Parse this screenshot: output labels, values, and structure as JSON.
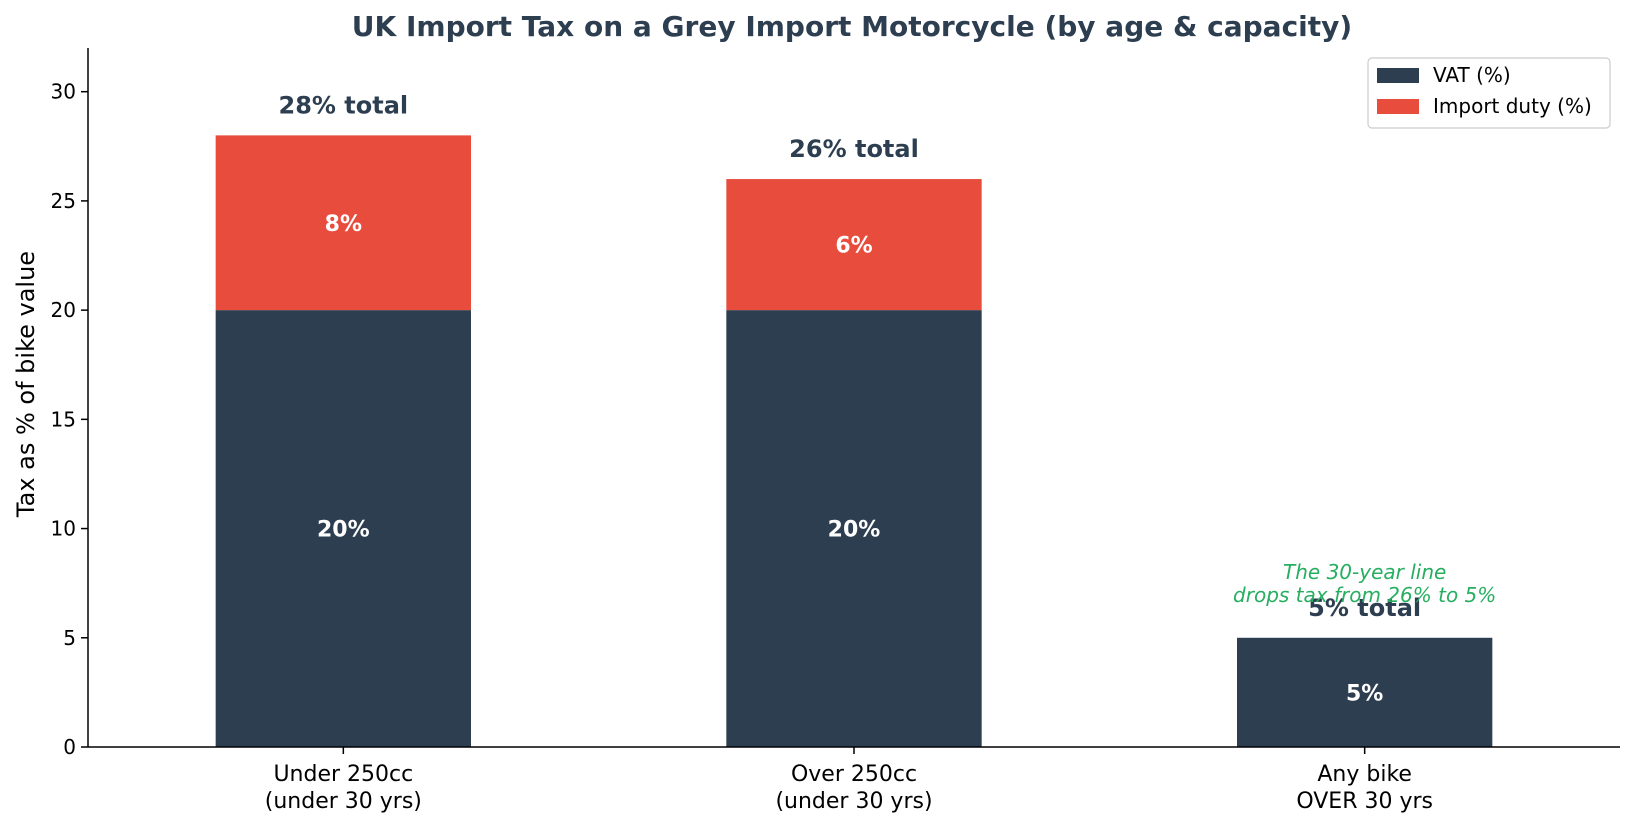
{
  "chart_data": {
    "type": "bar",
    "stacked": true,
    "title": "UK Import Tax on a Grey Import Motorcycle (by age & capacity)",
    "xlabel": "",
    "ylabel": "Tax as % of bike value",
    "ylim": [
      0,
      32
    ],
    "yticks": [
      0,
      5,
      10,
      15,
      20,
      25,
      30
    ],
    "grid": false,
    "legend_position": "top-right",
    "categories": [
      [
        "Under 250cc",
        "(under 30 yrs)"
      ],
      [
        "Over 250cc",
        "(under 30 yrs)"
      ],
      [
        "Any bike",
        "OVER 30 yrs"
      ]
    ],
    "series": [
      {
        "name": "VAT (%)",
        "color": "#2c3e50",
        "values": [
          20,
          20,
          5
        ],
        "labels": [
          "20%",
          "20%",
          "5%"
        ]
      },
      {
        "name": "Import duty (%)",
        "color": "#e74c3c",
        "values": [
          8,
          6,
          0
        ],
        "labels": [
          "8%",
          "6%",
          ""
        ]
      }
    ],
    "totals": [
      "28% total",
      "26% total",
      "5% total"
    ],
    "annotation": {
      "category_index": 2,
      "y": 7.5,
      "lines": [
        "The 30-year line",
        "drops tax from 26% to 5%"
      ],
      "color": "#27ae60"
    }
  }
}
